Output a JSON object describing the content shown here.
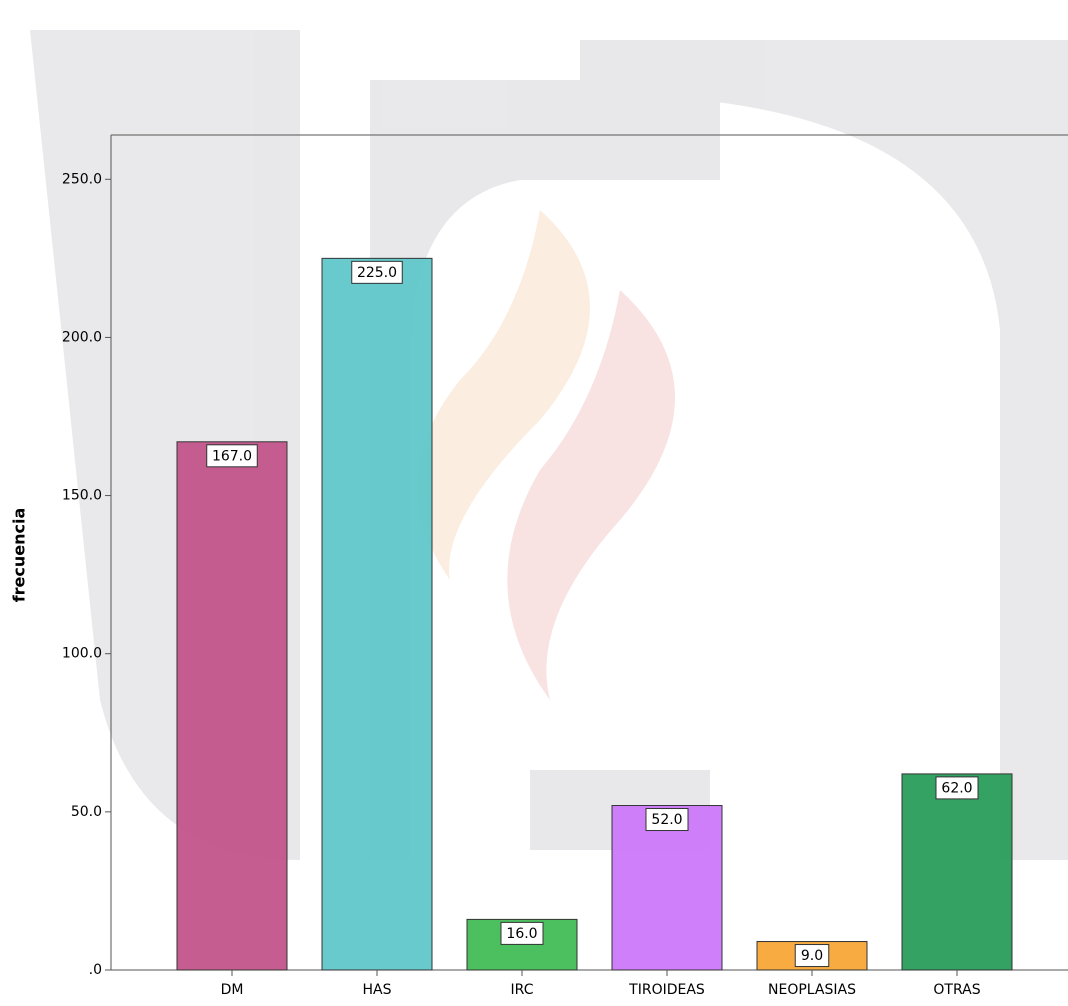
{
  "chart_data": {
    "type": "bar",
    "y_label": "frecuencia",
    "categories": [
      "DM",
      "HAS",
      "IRC",
      "TIROIDEAS",
      "NEOPLASIAS",
      "OTRAS"
    ],
    "values": [
      167,
      225,
      16,
      52,
      9,
      62
    ],
    "value_labels": [
      "167.0",
      "225.0",
      "16.0",
      "52.0",
      "9.0",
      "62.0"
    ],
    "colors": [
      "#c04f88",
      "#5bc5c8",
      "#3dba50",
      "#cc74fb",
      "#f6a431",
      "#229a55"
    ],
    "ylim": [
      0,
      264
    ],
    "yticks": [
      {
        "value": 0,
        "label": ".0"
      },
      {
        "value": 50,
        "label": "50.0"
      },
      {
        "value": 100,
        "label": "100.0"
      },
      {
        "value": 150,
        "label": "150.0"
      },
      {
        "value": 200,
        "label": "200.0"
      },
      {
        "value": 250,
        "label": "250.0"
      }
    ]
  }
}
